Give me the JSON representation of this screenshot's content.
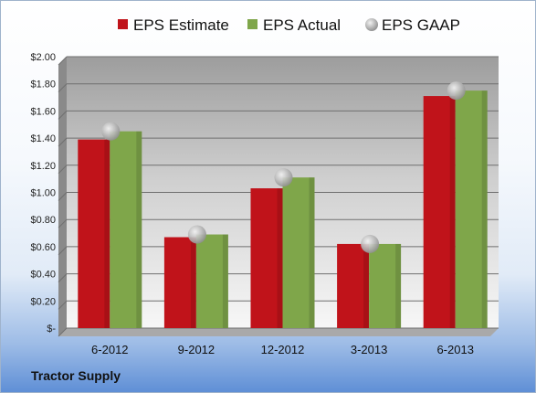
{
  "chart_data": {
    "type": "bar",
    "categories": [
      "6-2012",
      "9-2012",
      "12-2012",
      "3-2013",
      "6-2013"
    ],
    "series": [
      {
        "name": "EPS Estimate",
        "values": [
          1.39,
          0.67,
          1.03,
          0.62,
          1.71
        ],
        "color": "#c0131a"
      },
      {
        "name": "EPS Actual",
        "values": [
          1.45,
          0.69,
          1.11,
          0.62,
          1.75
        ],
        "color": "#7fa64a"
      }
    ],
    "markers": {
      "name": "EPS GAAP",
      "values": [
        1.45,
        0.69,
        1.11,
        0.62,
        1.75
      ],
      "color": "#b8b8b8"
    },
    "ylim": [
      0,
      2.0
    ],
    "yticks": [
      {
        "value": 0,
        "label": "$-"
      },
      {
        "value": 0.2,
        "label": "$0.20"
      },
      {
        "value": 0.4,
        "label": "$0.40"
      },
      {
        "value": 0.6,
        "label": "$0.60"
      },
      {
        "value": 0.8,
        "label": "$0.80"
      },
      {
        "value": 1.0,
        "label": "$1.00"
      },
      {
        "value": 1.2,
        "label": "$1.20"
      },
      {
        "value": 1.4,
        "label": "$1.40"
      },
      {
        "value": 1.6,
        "label": "$1.60"
      },
      {
        "value": 1.8,
        "label": "$1.80"
      },
      {
        "value": 2.0,
        "label": "$2.00"
      }
    ],
    "grid": true,
    "legend_position": "top"
  },
  "company_label": "Tractor Supply"
}
